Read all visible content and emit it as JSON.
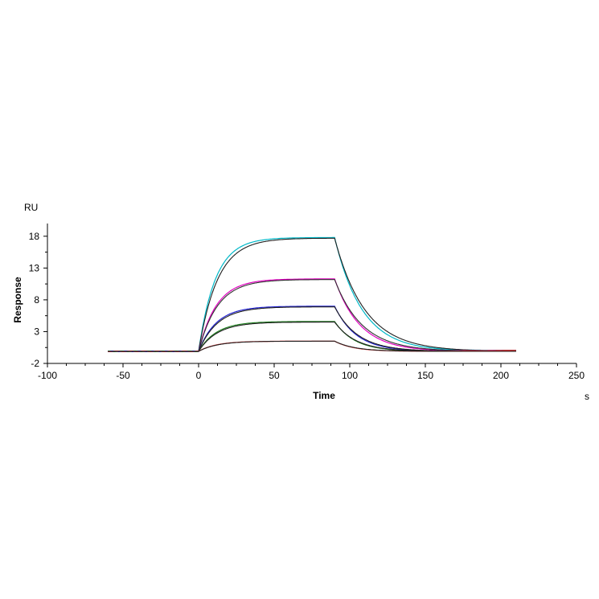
{
  "chart_data": {
    "type": "line",
    "xlabel": "Time",
    "ylabel": "Response",
    "x_unit": "s",
    "y_unit": "RU",
    "xlim": [
      -100,
      250
    ],
    "ylim": [
      -2,
      20
    ],
    "x_ticks": [
      -100,
      -50,
      0,
      50,
      100,
      150,
      200,
      250
    ],
    "y_ticks": [
      -2,
      3,
      8,
      13,
      18
    ],
    "grid": false,
    "legend": "none",
    "association_start": 0,
    "dissociation_start": 90,
    "x_start": -60,
    "x_end": 210,
    "series": [
      {
        "color": "#00b8c8",
        "role": "data",
        "plateau": 17.9,
        "kon": 0.09,
        "koff": 0.055
      },
      {
        "color": "#202020",
        "role": "fit",
        "plateau": 17.8,
        "kon": 0.08,
        "koff": 0.05
      },
      {
        "color": "#e000c0",
        "role": "data",
        "plateau": 11.4,
        "kon": 0.085,
        "koff": 0.06
      },
      {
        "color": "#303030",
        "role": "fit",
        "plateau": 11.3,
        "kon": 0.08,
        "koff": 0.055
      },
      {
        "color": "#2020d0",
        "role": "data",
        "plateau": 7.1,
        "kon": 0.085,
        "koff": 0.07
      },
      {
        "color": "#202020",
        "role": "fit",
        "plateau": 7.0,
        "kon": 0.08,
        "koff": 0.065
      },
      {
        "color": "#208020",
        "role": "data",
        "plateau": 4.7,
        "kon": 0.085,
        "koff": 0.075
      },
      {
        "color": "#202020",
        "role": "fit",
        "plateau": 4.6,
        "kon": 0.08,
        "koff": 0.07
      },
      {
        "color": "#e02020",
        "role": "data",
        "plateau": 1.6,
        "kon": 0.085,
        "koff": 0.08
      },
      {
        "color": "#202020",
        "role": "fit",
        "plateau": 1.6,
        "kon": 0.08,
        "koff": 0.075
      }
    ]
  }
}
